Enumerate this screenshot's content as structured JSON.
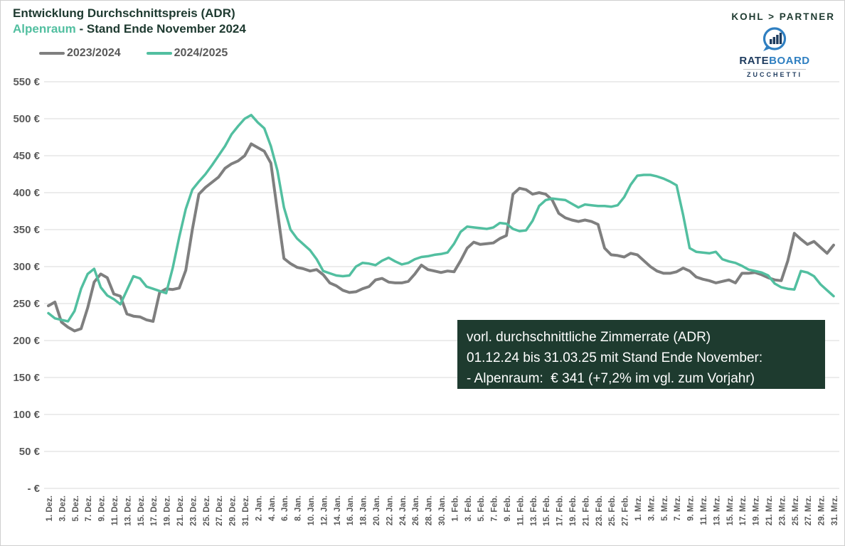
{
  "title": {
    "line1": "Entwicklung Durchschnittspreis (ADR)",
    "region": "Alpenraum",
    "line2_rest": " - Stand Ende November 2024"
  },
  "branding": {
    "kohl_partner": "KOHL > PARTNER",
    "rateboard": {
      "rate": "RATE",
      "board": "BOARD",
      "subtext": "ZUCCHETTI"
    }
  },
  "legend": [
    {
      "label": "2023/2024",
      "color": "#7f7f7f"
    },
    {
      "label": "2024/2025",
      "color": "#52bfa0"
    }
  ],
  "annotation": {
    "lines": [
      "vorl. durchschnittliche Zimmerrate (ADR)",
      "01.12.24 bis 31.03.25 mit Stand Ende November:",
      "- Alpenraum:  € 341 (+7,2% im vgl. zum Vorjahr)"
    ]
  },
  "colors": {
    "accent_green": "#52bfa0",
    "title_dark": "#1e3a30",
    "axis_text": "#595959",
    "gridline": "#d9d9d9",
    "annotation_bg": "#1e3b2f",
    "annotation_text": "#ffffff",
    "rateboard_navy": "#1e3b5e",
    "rateboard_blue": "#2f7fc1"
  },
  "chart_data": {
    "type": "line",
    "title": "Entwicklung Durchschnittspreis (ADR) Alpenraum - Stand Ende November 2024",
    "xlabel": "",
    "ylabel": "",
    "grid": true,
    "legend_position": "top-left",
    "ylim": [
      0,
      550
    ],
    "y_axis": {
      "min": 0,
      "max": 550,
      "step": 50,
      "tick_labels": [
        "- €",
        "50 €",
        "100 €",
        "150 €",
        "200 €",
        "250 €",
        "300 €",
        "350 €",
        "400 €",
        "450 €",
        "500 €",
        "550 €"
      ]
    },
    "x_days_total": 121,
    "x_tick_every": 2,
    "x_tick_labels": [
      "1. Dez.",
      "3. Dez.",
      "5. Dez.",
      "7. Dez.",
      "9. Dez.",
      "11. Dez.",
      "13. Dez.",
      "15. Dez.",
      "17. Dez.",
      "19. Dez.",
      "21. Dez.",
      "23. Dez.",
      "25. Dez.",
      "27. Dez.",
      "29. Dez.",
      "31. Dez.",
      "2. Jan.",
      "4. Jan.",
      "6. Jan.",
      "8. Jan.",
      "10. Jan.",
      "12. Jan.",
      "14. Jan.",
      "16. Jan.",
      "18. Jan.",
      "20. Jan.",
      "22. Jan.",
      "24. Jan.",
      "26. Jan.",
      "28. Jan.",
      "30. Jan.",
      "1. Feb.",
      "3. Feb.",
      "5. Feb.",
      "7. Feb.",
      "9. Feb.",
      "11. Feb.",
      "13. Feb.",
      "15. Feb.",
      "17. Feb.",
      "19. Feb.",
      "21. Feb.",
      "23. Feb.",
      "25. Feb.",
      "27. Feb.",
      "1. Mrz.",
      "3. Mrz.",
      "5. Mrz.",
      "7. Mrz.",
      "9. Mrz.",
      "11. Mrz.",
      "13. Mrz.",
      "15. Mrz.",
      "17. Mrz.",
      "19. Mrz.",
      "21. Mrz.",
      "23. Mrz.",
      "25. Mrz.",
      "27. Mrz.",
      "29. Mrz.",
      "31. Mrz."
    ],
    "series": [
      {
        "name": "2023/2024",
        "color": "#7f7f7f",
        "width": 4,
        "values": [
          247,
          252,
          225,
          218,
          213,
          216,
          244,
          279,
          290,
          285,
          263,
          260,
          236,
          233,
          232,
          228,
          226,
          265,
          270,
          269,
          271,
          295,
          350,
          398,
          407,
          414,
          421,
          433,
          439,
          443,
          450,
          466,
          461,
          456,
          440,
          375,
          311,
          304,
          299,
          297,
          294,
          296,
          289,
          278,
          274,
          268,
          265,
          266,
          270,
          273,
          282,
          284,
          279,
          278,
          278,
          280,
          290,
          302,
          296,
          294,
          292,
          294,
          293,
          308,
          325,
          333,
          330,
          331,
          332,
          338,
          342,
          398,
          406,
          404,
          398,
          400,
          398,
          390,
          372,
          366,
          363,
          361,
          363,
          361,
          357,
          325,
          316,
          315,
          313,
          318,
          316,
          308,
          300,
          294,
          291,
          291,
          293,
          298,
          294,
          286,
          283,
          281,
          278,
          280,
          282,
          278,
          291,
          291,
          292,
          289,
          285,
          282,
          281,
          308,
          345,
          337,
          330,
          334,
          326,
          318,
          329
        ]
      },
      {
        "name": "2024/2025",
        "color": "#52bfa0",
        "width": 3.5,
        "values": [
          237,
          230,
          228,
          226,
          240,
          270,
          290,
          297,
          272,
          261,
          256,
          249,
          268,
          287,
          284,
          273,
          270,
          267,
          264,
          298,
          340,
          378,
          404,
          415,
          425,
          437,
          450,
          463,
          479,
          490,
          500,
          505,
          495,
          487,
          463,
          430,
          380,
          350,
          338,
          330,
          322,
          310,
          294,
          291,
          288,
          287,
          288,
          300,
          305,
          304,
          302,
          308,
          312,
          307,
          303,
          305,
          310,
          313,
          314,
          316,
          317,
          319,
          331,
          347,
          354,
          353,
          352,
          351,
          353,
          359,
          358,
          351,
          348,
          349,
          362,
          382,
          390,
          392,
          391,
          390,
          385,
          380,
          384,
          383,
          382,
          382,
          381,
          383,
          394,
          411,
          423,
          424,
          424,
          422,
          419,
          415,
          410,
          370,
          325,
          320,
          319,
          318,
          320,
          310,
          307,
          305,
          301,
          296,
          294,
          292,
          288,
          277,
          272,
          270,
          269,
          294,
          292,
          287,
          276,
          268,
          260
        ]
      }
    ]
  }
}
